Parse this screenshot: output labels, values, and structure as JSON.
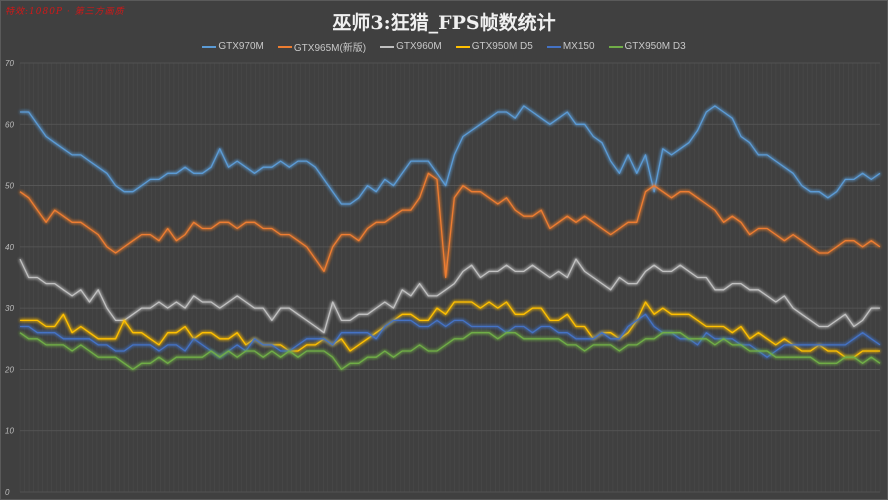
{
  "watermark": "特效:1080P · 第三方画质",
  "title": "巫师3:狂猎_FPS帧数统计",
  "colors": {
    "background": "#404040",
    "grid": "#555555",
    "GTX970M": "#5b9bd5",
    "GTX965M": "#ed7d31",
    "GTX960M": "#c0c0c0",
    "GTX950M_D5": "#ffc000",
    "MX150": "#4472c4",
    "GTX950M_D3": "#70ad47"
  },
  "legend": [
    {
      "label": "GTX970M",
      "color": "#5b9bd5"
    },
    {
      "label": "GTX965M(新版)",
      "color": "#ed7d31"
    },
    {
      "label": "GTX960M",
      "color": "#c0c0c0"
    },
    {
      "label": "GTX950M D5",
      "color": "#ffc000"
    },
    {
      "label": "MX150",
      "color": "#4472c4"
    },
    {
      "label": "GTX950M D3",
      "color": "#70ad47"
    }
  ],
  "y_axis": {
    "ticks": [
      "70",
      "60",
      "50",
      "40",
      "30",
      "20",
      "10",
      "0"
    ]
  },
  "chart_data": {
    "type": "line",
    "title": "巫师3:狂猎_FPS帧数统计",
    "xlabel": "",
    "ylabel": "",
    "ylim": [
      0,
      70
    ],
    "grid": true,
    "legend_position": "top",
    "x": "sample index (~96 samples, unlabeled)",
    "series": [
      {
        "name": "GTX970M",
        "values": [
          62,
          62,
          60,
          58,
          57,
          56,
          55,
          55,
          54,
          53,
          52,
          50,
          49,
          49,
          50,
          51,
          51,
          52,
          52,
          53,
          52,
          52,
          53,
          56,
          53,
          54,
          53,
          52,
          53,
          53,
          54,
          53,
          54,
          54,
          53,
          51,
          49,
          47,
          47,
          48,
          50,
          49,
          51,
          50,
          52,
          54,
          54,
          54,
          52,
          50,
          55,
          58,
          59,
          60,
          61,
          62,
          62,
          61,
          63,
          62,
          61,
          60,
          61,
          62,
          60,
          60,
          58,
          57,
          54,
          52,
          55,
          52,
          55,
          49,
          56,
          55,
          56,
          57,
          59,
          62,
          63,
          62,
          61,
          58,
          57,
          55,
          55,
          54,
          53,
          52,
          50,
          49,
          49,
          48,
          49,
          51,
          51,
          52,
          51,
          52
        ]
      },
      {
        "name": "GTX965M(新版)",
        "values": [
          49,
          48,
          46,
          44,
          46,
          45,
          44,
          44,
          43,
          42,
          40,
          39,
          40,
          41,
          42,
          42,
          41,
          43,
          41,
          42,
          44,
          43,
          43,
          44,
          44,
          43,
          44,
          44,
          43,
          43,
          42,
          42,
          41,
          40,
          38,
          36,
          40,
          42,
          42,
          41,
          43,
          44,
          44,
          45,
          46,
          46,
          48,
          52,
          51,
          35,
          48,
          50,
          49,
          49,
          48,
          47,
          48,
          46,
          45,
          45,
          46,
          43,
          44,
          45,
          44,
          45,
          44,
          43,
          42,
          43,
          44,
          44,
          49,
          50,
          49,
          48,
          49,
          49,
          48,
          47,
          46,
          44,
          45,
          44,
          42,
          43,
          43,
          42,
          41,
          42,
          41,
          40,
          39,
          39,
          40,
          41,
          41,
          40,
          41,
          40
        ]
      },
      {
        "name": "GTX960M",
        "values": [
          38,
          35,
          35,
          34,
          34,
          33,
          32,
          33,
          31,
          33,
          30,
          28,
          28,
          29,
          30,
          30,
          31,
          30,
          31,
          30,
          32,
          31,
          31,
          30,
          31,
          32,
          31,
          30,
          30,
          28,
          30,
          30,
          29,
          28,
          27,
          26,
          31,
          28,
          28,
          29,
          29,
          30,
          31,
          30,
          33,
          32,
          34,
          32,
          32,
          33,
          34,
          36,
          37,
          35,
          36,
          36,
          37,
          36,
          36,
          37,
          36,
          35,
          36,
          35,
          38,
          36,
          35,
          34,
          33,
          35,
          34,
          34,
          36,
          37,
          36,
          36,
          37,
          36,
          35,
          35,
          33,
          33,
          34,
          34,
          33,
          33,
          32,
          31,
          32,
          30,
          29,
          28,
          27,
          27,
          28,
          29,
          27,
          28,
          30,
          30
        ]
      },
      {
        "name": "GTX950M D5",
        "values": [
          28,
          28,
          28,
          27,
          27,
          29,
          26,
          27,
          26,
          25,
          25,
          25,
          28,
          26,
          26,
          25,
          24,
          26,
          26,
          27,
          25,
          26,
          26,
          25,
          25,
          26,
          24,
          25,
          24,
          24,
          24,
          23,
          23,
          24,
          24,
          25,
          24,
          25,
          23,
          24,
          25,
          26,
          27,
          28,
          29,
          29,
          28,
          28,
          30,
          29,
          31,
          31,
          31,
          30,
          31,
          30,
          31,
          29,
          29,
          30,
          30,
          28,
          28,
          29,
          27,
          27,
          25,
          26,
          26,
          25,
          26,
          28,
          31,
          29,
          30,
          29,
          29,
          29,
          28,
          27,
          27,
          27,
          26,
          27,
          25,
          26,
          25,
          24,
          25,
          24,
          23,
          23,
          24,
          23,
          23,
          22,
          22,
          23,
          23,
          23
        ]
      },
      {
        "name": "MX150",
        "values": [
          27,
          27,
          26,
          26,
          26,
          25,
          25,
          25,
          25,
          24,
          24,
          23,
          23,
          24,
          24,
          24,
          23,
          24,
          24,
          23,
          25,
          24,
          23,
          22,
          23,
          24,
          23,
          25,
          24,
          24,
          23,
          23,
          24,
          25,
          25,
          25,
          24,
          26,
          26,
          26,
          26,
          25,
          27,
          28,
          28,
          28,
          27,
          27,
          28,
          27,
          28,
          28,
          27,
          27,
          27,
          27,
          26,
          27,
          27,
          26,
          27,
          27,
          26,
          26,
          25,
          25,
          25,
          26,
          25,
          25,
          27,
          28,
          29,
          27,
          26,
          26,
          25,
          25,
          24,
          26,
          25,
          25,
          25,
          24,
          24,
          23,
          22,
          23,
          24,
          24,
          24,
          24,
          24,
          24,
          24,
          24,
          25,
          26,
          25,
          24
        ]
      },
      {
        "name": "GTX950M D3",
        "values": [
          26,
          25,
          25,
          24,
          24,
          24,
          23,
          24,
          23,
          22,
          22,
          22,
          21,
          20,
          21,
          21,
          22,
          21,
          22,
          22,
          22,
          22,
          23,
          22,
          23,
          22,
          23,
          23,
          22,
          23,
          22,
          23,
          22,
          23,
          23,
          23,
          22,
          20,
          21,
          21,
          22,
          22,
          23,
          22,
          23,
          23,
          24,
          23,
          23,
          24,
          25,
          25,
          26,
          26,
          26,
          25,
          26,
          26,
          25,
          25,
          25,
          25,
          25,
          24,
          24,
          23,
          24,
          24,
          24,
          23,
          24,
          24,
          25,
          25,
          26,
          26,
          26,
          25,
          25,
          25,
          24,
          25,
          24,
          24,
          23,
          23,
          23,
          22,
          22,
          22,
          22,
          22,
          21,
          21,
          21,
          22,
          22,
          21,
          22,
          21
        ]
      }
    ]
  }
}
